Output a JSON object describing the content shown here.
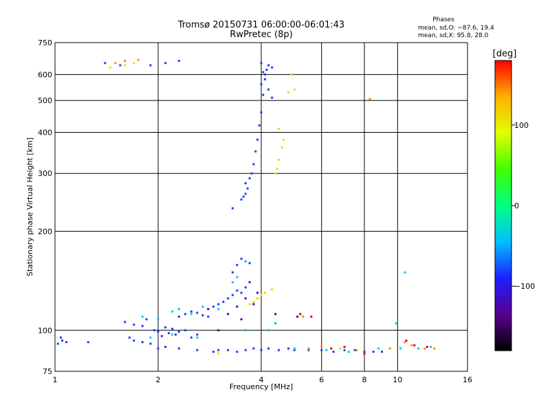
{
  "title": "Tromsø 20150731 06:00:00-06:01:43",
  "subtitle": "RwPretec (8p)",
  "phases_box": {
    "heading": "Phases",
    "line_o": "mean, sd,O: −87.6, 19.4",
    "line_x": "mean, sd,X:  95.8, 28.0"
  },
  "colorbar": {
    "label": "[deg]",
    "ticks": [
      {
        "value": 100,
        "label": "100"
      },
      {
        "value": 0,
        "label": "0"
      },
      {
        "value": -100,
        "label": "−100"
      }
    ],
    "range": [
      -180,
      180
    ],
    "stops": [
      "#000000",
      "#5a0090",
      "#1e1eff",
      "#00c0ff",
      "#00ff80",
      "#40ff00",
      "#e0ff00",
      "#ffb000",
      "#ff0000"
    ]
  },
  "chart_data": {
    "type": "scatter",
    "xlabel": "Frequency [MHz]",
    "ylabel": "Stationary phase Virtual Height [km]",
    "xscale": "log",
    "yscale": "log",
    "xlim": [
      1,
      16
    ],
    "ylim": [
      75,
      750
    ],
    "xticks": [
      1,
      2,
      4,
      6,
      8,
      10,
      16
    ],
    "yticks": [
      75,
      100,
      200,
      300,
      400,
      500,
      600,
      750
    ],
    "grid": true,
    "series": [
      {
        "points": [
          [
            1.02,
            91
          ],
          [
            1.05,
            93
          ],
          [
            1.08,
            92
          ],
          [
            1.04,
            95
          ],
          [
            1.25,
            92
          ],
          [
            1.65,
            95
          ],
          [
            1.7,
            93
          ],
          [
            1.8,
            92
          ],
          [
            1.9,
            91
          ],
          [
            1.6,
            106
          ],
          [
            1.7,
            104
          ],
          [
            1.8,
            103
          ],
          [
            1.85,
            108
          ],
          [
            1.95,
            100
          ],
          [
            2.0,
            99
          ],
          [
            2.05,
            96
          ],
          [
            2.1,
            102
          ],
          [
            2.15,
            98
          ],
          [
            2.2,
            101
          ],
          [
            2.25,
            97
          ],
          [
            2.3,
            99
          ],
          [
            2.4,
            100
          ],
          [
            2.5,
            95
          ],
          [
            2.6,
            97
          ],
          [
            2.3,
            110
          ],
          [
            2.4,
            112
          ],
          [
            2.5,
            114
          ],
          [
            2.6,
            113
          ],
          [
            2.7,
            111
          ],
          [
            2.8,
            110
          ],
          [
            2.9,
            118
          ],
          [
            3.0,
            120
          ],
          [
            3.1,
            122
          ],
          [
            3.2,
            125
          ],
          [
            3.3,
            128
          ],
          [
            3.4,
            132
          ],
          [
            3.5,
            130
          ],
          [
            3.6,
            135
          ],
          [
            3.3,
            150
          ],
          [
            3.4,
            158
          ],
          [
            3.5,
            165
          ],
          [
            3.6,
            162
          ],
          [
            3.7,
            160
          ],
          [
            2.0,
            88
          ],
          [
            2.1,
            89
          ],
          [
            2.3,
            88
          ],
          [
            2.6,
            87
          ],
          [
            2.9,
            86
          ],
          [
            3.0,
            87
          ],
          [
            3.2,
            87
          ],
          [
            3.4,
            86
          ],
          [
            3.6,
            87
          ],
          [
            3.8,
            88
          ],
          [
            4.0,
            87
          ],
          [
            4.2,
            88
          ],
          [
            4.5,
            87
          ],
          [
            4.8,
            88
          ],
          [
            5.0,
            87
          ],
          [
            5.5,
            87
          ],
          [
            6.0,
            87
          ],
          [
            6.5,
            86
          ],
          [
            7.0,
            87
          ],
          [
            7.5,
            87
          ],
          [
            8.0,
            86
          ],
          [
            8.5,
            86
          ],
          [
            9.0,
            86
          ],
          [
            3.3,
            235
          ],
          [
            3.5,
            250
          ],
          [
            3.55,
            255
          ],
          [
            3.6,
            260
          ],
          [
            3.65,
            270
          ],
          [
            3.6,
            280
          ],
          [
            3.7,
            290
          ],
          [
            3.75,
            300
          ],
          [
            3.8,
            320
          ],
          [
            3.85,
            350
          ],
          [
            3.9,
            380
          ],
          [
            3.95,
            420
          ],
          [
            4.0,
            460
          ],
          [
            4.05,
            520
          ],
          [
            4.0,
            560
          ],
          [
            4.1,
            600
          ],
          [
            4.15,
            620
          ],
          [
            4.2,
            640
          ],
          [
            4.3,
            630
          ],
          [
            4.1,
            580
          ],
          [
            4.2,
            540
          ],
          [
            4.3,
            510
          ],
          [
            4.0,
            650
          ],
          [
            4.05,
            610
          ],
          [
            1.4,
            650
          ],
          [
            1.55,
            640
          ],
          [
            1.9,
            640
          ],
          [
            2.1,
            650
          ],
          [
            2.3,
            660
          ]
        ],
        "color": "#1e3cff"
      },
      {
        "points": [
          [
            1.8,
            110
          ],
          [
            2.0,
            108
          ],
          [
            2.2,
            114
          ],
          [
            2.3,
            116
          ],
          [
            2.5,
            112
          ],
          [
            2.7,
            118
          ],
          [
            3.0,
            116
          ],
          [
            3.3,
            140
          ],
          [
            3.4,
            145
          ],
          [
            3.6,
            162
          ],
          [
            1.9,
            95
          ],
          [
            2.2,
            97
          ],
          [
            2.6,
            95
          ],
          [
            10.5,
            150
          ],
          [
            9.9,
            105
          ],
          [
            5.0,
            88
          ],
          [
            6.2,
            87
          ],
          [
            7.2,
            86
          ],
          [
            8.8,
            88
          ],
          [
            10.2,
            88
          ],
          [
            11.5,
            88
          ],
          [
            12.5,
            89
          ]
        ],
        "color": "#00c8ff"
      },
      {
        "points": [
          [
            3.0,
            100
          ],
          [
            3.2,
            112
          ],
          [
            3.4,
            118
          ],
          [
            3.6,
            125
          ],
          [
            3.8,
            120
          ],
          [
            4.4,
            112
          ],
          [
            5.1,
            110
          ],
          [
            3.7,
            140
          ],
          [
            3.9,
            130
          ],
          [
            2.8,
            116
          ],
          [
            3.5,
            108
          ]
        ],
        "color": "#5a00a0"
      },
      {
        "points": [
          [
            3.7,
            120
          ],
          [
            3.8,
            122
          ],
          [
            3.9,
            125
          ],
          [
            4.0,
            128
          ],
          [
            4.1,
            130
          ],
          [
            4.3,
            133
          ],
          [
            4.4,
            300
          ],
          [
            4.45,
            310
          ],
          [
            4.5,
            330
          ],
          [
            4.6,
            360
          ],
          [
            4.65,
            380
          ],
          [
            4.5,
            410
          ],
          [
            4.8,
            530
          ],
          [
            5.0,
            540
          ],
          [
            1.45,
            630
          ],
          [
            1.6,
            640
          ],
          [
            1.7,
            650
          ],
          [
            3.0,
            85
          ],
          [
            6.8,
            88
          ],
          [
            4.9,
            600
          ]
        ],
        "color": "#e0e000"
      },
      {
        "points": [
          [
            1.5,
            650
          ],
          [
            1.6,
            660
          ],
          [
            1.75,
            665
          ],
          [
            5.5,
            88
          ],
          [
            6.0,
            89
          ],
          [
            7.6,
            87
          ],
          [
            8.3,
            505
          ],
          [
            9.5,
            88
          ],
          [
            10.5,
            92
          ],
          [
            11.0,
            90
          ],
          [
            12.0,
            88
          ],
          [
            5.3,
            110
          ],
          [
            12.8,
            88
          ]
        ],
        "color": "#ff8c00"
      },
      {
        "points": [
          [
            5.2,
            112
          ],
          [
            5.6,
            110
          ],
          [
            6.4,
            88
          ],
          [
            7.0,
            89
          ],
          [
            8.0,
            85
          ],
          [
            10.6,
            93
          ],
          [
            11.2,
            90
          ],
          [
            12.2,
            89
          ]
        ],
        "color": "#e00000"
      },
      {
        "points": [
          [
            3.6,
            100
          ],
          [
            4.2,
            100
          ],
          [
            4.4,
            105
          ]
        ],
        "color": "#00c060"
      }
    ]
  }
}
